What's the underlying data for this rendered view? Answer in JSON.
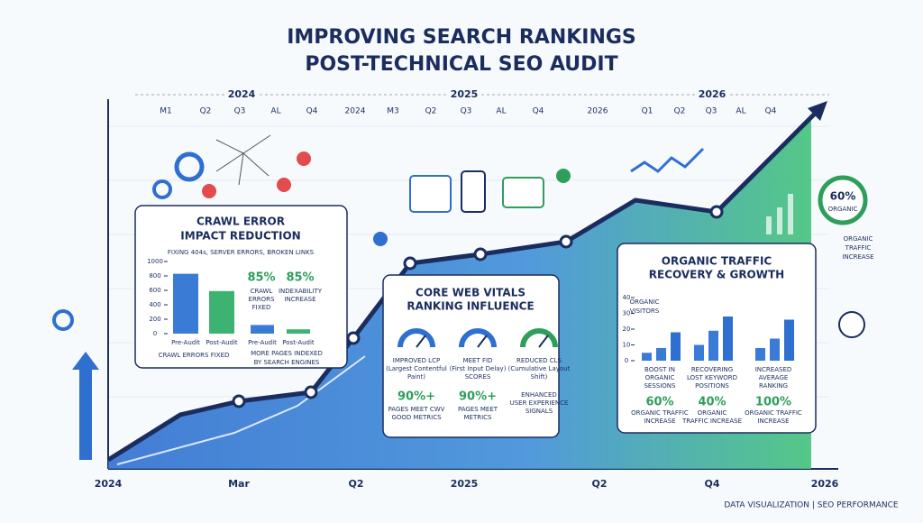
{
  "header": {
    "title": [
      "IMPROVING SEARCH RANKINGS",
      "POST-TECHNICAL SEO AUDIT"
    ]
  },
  "timeline": {
    "years": [
      "2024",
      "2025",
      "2026"
    ],
    "labels": [
      "M1",
      "Q2",
      "Q3",
      "AL",
      "Q4",
      "2024",
      "M3",
      "Q2",
      "Q3",
      "AL",
      "Q4",
      "2026",
      "Q1",
      "Q2",
      "Q3",
      "AL",
      "Q4"
    ]
  },
  "x_axis": [
    "2024",
    "Mar",
    "Q2",
    "2025",
    "Q2",
    "Q4",
    "2026"
  ],
  "crawl": {
    "title": [
      "CRAWL ERROR",
      "IMPACT REDUCTION"
    ],
    "note": "FIXING 404s, SERVER ERRORS, BROKEN LINKS",
    "chart": {
      "ylim": [
        0,
        1000
      ],
      "yticks": [
        1000,
        800,
        600,
        400,
        200,
        0
      ],
      "categories": [
        "Pre-Audit",
        "Post-Audit"
      ],
      "values": [
        830,
        590
      ],
      "caption": "CRAWL ERRORS FIXED"
    },
    "chart2": {
      "categories": [
        "Pre-Audit",
        "Post-Audit"
      ],
      "values": [
        120,
        60
      ],
      "caption": [
        "MORE PAGES INDEXED",
        "BY SEARCH ENGINES"
      ]
    },
    "stats": [
      {
        "value": "85%",
        "label": [
          "CRAWL",
          "ERRORS",
          "FIXED"
        ]
      },
      {
        "value": "85%",
        "label": [
          "INDEXABILITY",
          "INCREASE"
        ]
      }
    ]
  },
  "cwv": {
    "title": [
      "CORE WEB VITALS",
      "RANKING INFLUENCE"
    ],
    "items": [
      {
        "label": [
          "IMPROVED LCP",
          "(Largest Contentful",
          "Paint)"
        ],
        "stat": "90%+",
        "note": [
          "PAGES MEET CWV",
          "GOOD METRICS"
        ]
      },
      {
        "label": [
          "MEET FID",
          "(First Input Delay)",
          "SCORES"
        ],
        "stat": "90%+",
        "note": [
          "PAGES MEET",
          "METRICS"
        ]
      },
      {
        "label": [
          "REDUCED CLS",
          "(Cumulative Layout",
          "Shift)"
        ],
        "stat": null,
        "note": [
          "ENHANCED",
          "USER EXPERIENCE",
          "SIGNALS"
        ]
      }
    ]
  },
  "organic": {
    "title": [
      "ORGANIC TRAFFIC",
      "RECOVERY & GROWTH"
    ],
    "axis_title": [
      "ORGANIC",
      "VISITORS"
    ],
    "ylim": [
      0,
      40
    ],
    "yticks": [
      40,
      30,
      20,
      10,
      0
    ],
    "groups": [
      {
        "values": [
          5,
          8,
          18
        ],
        "label": [
          "BOOST IN",
          "ORGANIC",
          "SESSIONS"
        ],
        "stat": "60%",
        "note": [
          "ORGANIC TRAFFIC",
          "INCREASE"
        ]
      },
      {
        "values": [
          10,
          19,
          28
        ],
        "label": [
          "RECOVERING",
          "LOST KEYWORD",
          "POSITIONS"
        ],
        "stat": "40%",
        "note": [
          "ORGANIC",
          "TRAFFIC INCREASE"
        ]
      },
      {
        "values": [
          8,
          14,
          26
        ],
        "label": [
          "INCREASED",
          "AVERAGE",
          "RANKING"
        ],
        "stat": "100%",
        "note": [
          "ORGANIC TRAFFIC",
          "INCREASE"
        ]
      }
    ]
  },
  "side": {
    "ring_value": "60%",
    "ring_label": "ORGANIC",
    "note": [
      "ORGANIC",
      "TRAFFIC",
      "INCREASE"
    ]
  },
  "footer": "DATA VISUALIZATION | SEO PERFORMANCE"
}
